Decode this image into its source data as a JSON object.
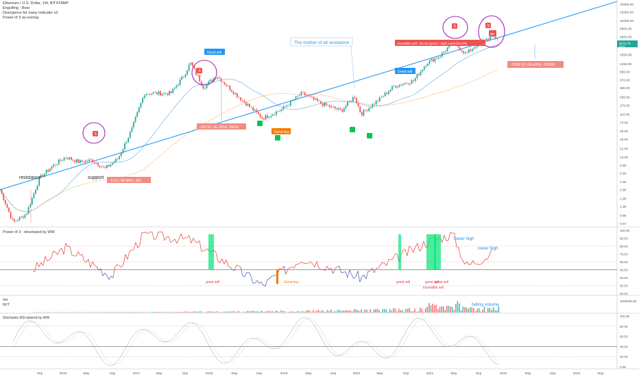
{
  "header": {
    "symbol_line": "Ethereum / U.S. Dollar, 1W, BITSTAMP",
    "indicators": [
      "Engulfing - Bear",
      "Divergence for many indicator v3",
      "Power of 3 as overlay"
    ]
  },
  "price_axis": {
    "labels": [
      "22000.00",
      "15000.00",
      "10000.00",
      "6800.00",
      "4600.00",
      "2950.00",
      "1950.00",
      "1250.00",
      "850.00",
      "570.00",
      "390.00",
      "250.00",
      "170.00",
      "110.00",
      "74.00",
      "49.00",
      "33.00",
      "21.00",
      "14.00",
      "9.50",
      "6.50",
      "4.30",
      "2.90",
      "1.90",
      "1.30",
      "0.85",
      "0.57"
    ],
    "last_price": "4073.75",
    "last_price_sub": "3d 9h"
  },
  "time_axis": {
    "labels": [
      "Sep",
      "2016",
      "May",
      "Sep",
      "2017",
      "May",
      "Sep",
      "2018",
      "May",
      "Sep",
      "2019",
      "May",
      "Sep",
      "2020",
      "May",
      "Sep",
      "2021",
      "May",
      "Sep",
      "2022",
      "May",
      "Sep",
      "2023",
      "May"
    ]
  },
  "annotations": {
    "resistance": "resistance",
    "support": "support",
    "mother": "The mother of all resistance",
    "great_sell_1": "Great sell",
    "great_sell_2": "Great sell",
    "great_buy": "Great buy",
    "incredible_sell": "incredible sell - do not ignore - high correction P!b",
    "incredible_tag": "4h",
    "measure_1": "-9.52 (-58.98%) -952",
    "measure_2": "-392.52 (-81.30%) -39252",
    "measure_3": "-2508.91 (-56.43%) -250891",
    "s_marker": "S",
    "be_marker": "BE"
  },
  "power3": {
    "title": "Power of 3 - developed by WW",
    "axis": [
      "100.00",
      "90.00",
      "80.00",
      "70.00",
      "60.00",
      "50.00",
      "40.00",
      "30.00",
      "20.00"
    ],
    "labels": {
      "great_sell_a": "great sell",
      "great_buy": "Great buy",
      "great_sell_b": "great sell",
      "great_sell_c": "great sell",
      "great_sell_d": "great sell",
      "incredible_sell": "incredible sell",
      "lower_high_1": "lower high",
      "lower_high_2": "lower high"
    }
  },
  "volume": {
    "title": "Vol",
    "subtitle": "NVT",
    "axis": [
      "1000000.00"
    ],
    "falling": "falling volume"
  },
  "stoch": {
    "title": "Stochastic RSI tailored by WW",
    "axis": [
      "100.00",
      "80.00",
      "60.00",
      "40.00",
      "20.00",
      "0.00"
    ]
  },
  "colors": {
    "up": "#26a69a",
    "down": "#ef5350",
    "trend": "#2196f3",
    "ma": "#5aa9e6",
    "orange": "#f57c00",
    "purple": "#9c27b0"
  },
  "chart_data": {
    "type": "candlestick",
    "symbol": "ETH/USD",
    "interval": "1W",
    "y_scale": "log",
    "y_range": [
      0.57,
      22000
    ],
    "x_range": [
      "2015-08",
      "2023-06"
    ],
    "price_path": [
      {
        "date": "2015-08",
        "price": 2.9
      },
      {
        "date": "2015-10",
        "price": 0.6
      },
      {
        "date": "2015-12",
        "price": 0.9
      },
      {
        "date": "2016-02",
        "price": 5
      },
      {
        "date": "2016-04",
        "price": 9
      },
      {
        "date": "2016-06",
        "price": 14
      },
      {
        "date": "2016-08",
        "price": 11
      },
      {
        "date": "2016-10",
        "price": 12
      },
      {
        "date": "2016-12",
        "price": 8
      },
      {
        "date": "2017-02",
        "price": 13
      },
      {
        "date": "2017-04",
        "price": 50
      },
      {
        "date": "2017-06",
        "price": 300
      },
      {
        "date": "2017-08",
        "price": 300
      },
      {
        "date": "2017-10",
        "price": 300
      },
      {
        "date": "2017-12",
        "price": 700
      },
      {
        "date": "2018-01",
        "price": 1300
      },
      {
        "date": "2018-03",
        "price": 400
      },
      {
        "date": "2018-05",
        "price": 700
      },
      {
        "date": "2018-08",
        "price": 280
      },
      {
        "date": "2018-12",
        "price": 90
      },
      {
        "date": "2019-03",
        "price": 140
      },
      {
        "date": "2019-06",
        "price": 300
      },
      {
        "date": "2019-09",
        "price": 180
      },
      {
        "date": "2019-12",
        "price": 130
      },
      {
        "date": "2020-02",
        "price": 260
      },
      {
        "date": "2020-03",
        "price": 110
      },
      {
        "date": "2020-06",
        "price": 240
      },
      {
        "date": "2020-08",
        "price": 420
      },
      {
        "date": "2020-11",
        "price": 550
      },
      {
        "date": "2021-01",
        "price": 1300
      },
      {
        "date": "2021-03",
        "price": 1800
      },
      {
        "date": "2021-05",
        "price": 3500
      },
      {
        "date": "2021-07",
        "price": 2000
      },
      {
        "date": "2021-09",
        "price": 3500
      },
      {
        "date": "2021-11",
        "price": 4600
      },
      {
        "date": "2021-12",
        "price": 4073
      }
    ],
    "trendline": [
      {
        "date": "2015-08",
        "price": 2.9
      },
      {
        "date": "2023-06",
        "price": 25000
      }
    ],
    "power3": [
      {
        "date": "2016-01",
        "value": 50
      },
      {
        "date": "2016-06",
        "value": 78
      },
      {
        "date": "2017-01",
        "value": 42
      },
      {
        "date": "2017-06",
        "value": 95
      },
      {
        "date": "2018-01",
        "value": 88
      },
      {
        "date": "2018-12",
        "value": 30
      },
      {
        "date": "2019-06",
        "value": 65
      },
      {
        "date": "2020-03",
        "value": 40
      },
      {
        "date": "2021-01",
        "value": 85
      },
      {
        "date": "2021-05",
        "value": 95
      },
      {
        "date": "2021-07",
        "value": 55
      },
      {
        "date": "2021-11",
        "value": 70
      }
    ],
    "annotations": [
      "resistance",
      "support",
      "The mother of all resistance",
      "Great sell",
      "Great buy",
      "incredible sell - do not ignore - high correction P!b"
    ]
  }
}
